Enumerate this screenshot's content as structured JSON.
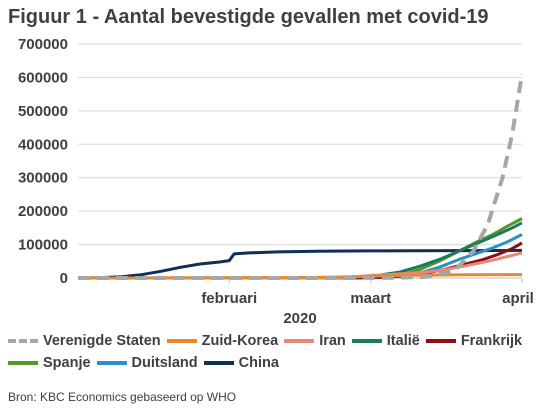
{
  "title": "Figuur 1 - Aantal bevestigde gevallen met covid-19",
  "source": "Bron: KBC Economics gebaseerd op WHO",
  "chart_data": {
    "type": "line",
    "title": "Figuur 1 - Aantal bevestigde gevallen met covid-19",
    "xlabel": "2020",
    "ylabel": "",
    "ylim": [
      0,
      700000
    ],
    "yticks": [
      "0",
      "100000",
      "200000",
      "300000",
      "400000",
      "500000",
      "600000",
      "700000"
    ],
    "xticks": [
      {
        "label": "februari",
        "day": 32
      },
      {
        "label": "maart",
        "day": 61
      },
      {
        "label": "april",
        "day": 92
      }
    ],
    "xlim_day": [
      1,
      92
    ],
    "grid": true,
    "legend_position": "bottom",
    "series": [
      {
        "name": "Verenigde Staten",
        "color": "#a6a6a6",
        "dashed": true,
        "points": [
          [
            1,
            0
          ],
          [
            55,
            0
          ],
          [
            65,
            500
          ],
          [
            72,
            3000
          ],
          [
            78,
            20000
          ],
          [
            82,
            80000
          ],
          [
            85,
            160000
          ],
          [
            88,
            300000
          ],
          [
            90,
            430000
          ],
          [
            92,
            610000
          ]
        ]
      },
      {
        "name": "Zuid-Korea",
        "color": "#e8872b",
        "points": [
          [
            1,
            0
          ],
          [
            45,
            500
          ],
          [
            55,
            3000
          ],
          [
            62,
            6000
          ],
          [
            70,
            8000
          ],
          [
            80,
            9500
          ],
          [
            92,
            10300
          ]
        ]
      },
      {
        "name": "Iran",
        "color": "#e8877a",
        "points": [
          [
            1,
            0
          ],
          [
            50,
            0
          ],
          [
            55,
            1000
          ],
          [
            62,
            8000
          ],
          [
            70,
            15000
          ],
          [
            75,
            22000
          ],
          [
            80,
            35000
          ],
          [
            85,
            50000
          ],
          [
            89,
            64000
          ],
          [
            92,
            75000
          ]
        ]
      },
      {
        "name": "Italië",
        "color": "#1e7a5e",
        "points": [
          [
            1,
            0
          ],
          [
            52,
            0
          ],
          [
            56,
            1500
          ],
          [
            62,
            7000
          ],
          [
            67,
            18000
          ],
          [
            71,
            35000
          ],
          [
            75,
            55000
          ],
          [
            79,
            80000
          ],
          [
            83,
            105000
          ],
          [
            87,
            130000
          ],
          [
            90,
            150000
          ],
          [
            92,
            165000
          ]
        ]
      },
      {
        "name": "Frankrijk",
        "color": "#8b0e16",
        "points": [
          [
            1,
            0
          ],
          [
            58,
            200
          ],
          [
            63,
            2000
          ],
          [
            68,
            6000
          ],
          [
            72,
            14000
          ],
          [
            76,
            25000
          ],
          [
            80,
            40000
          ],
          [
            84,
            55000
          ],
          [
            87,
            70000
          ],
          [
            90,
            88000
          ],
          [
            92,
            105000
          ]
        ]
      },
      {
        "name": "Spanje",
        "color": "#4e9a28",
        "points": [
          [
            1,
            0
          ],
          [
            58,
            200
          ],
          [
            63,
            2500
          ],
          [
            67,
            8000
          ],
          [
            71,
            25000
          ],
          [
            75,
            50000
          ],
          [
            79,
            80000
          ],
          [
            83,
            110000
          ],
          [
            86,
            130000
          ],
          [
            89,
            155000
          ],
          [
            92,
            178000
          ]
        ]
      },
      {
        "name": "Duitsland",
        "color": "#2e8fc4",
        "points": [
          [
            1,
            0
          ],
          [
            58,
            100
          ],
          [
            63,
            1500
          ],
          [
            67,
            5000
          ],
          [
            71,
            15000
          ],
          [
            75,
            32000
          ],
          [
            79,
            55000
          ],
          [
            83,
            75000
          ],
          [
            86,
            90000
          ],
          [
            89,
            108000
          ],
          [
            92,
            130000
          ]
        ]
      },
      {
        "name": "China",
        "color": "#0f2f55",
        "points": [
          [
            1,
            0
          ],
          [
            5,
            500
          ],
          [
            10,
            4000
          ],
          [
            14,
            10000
          ],
          [
            18,
            20000
          ],
          [
            22,
            32000
          ],
          [
            26,
            42000
          ],
          [
            30,
            48000
          ],
          [
            32,
            52000
          ],
          [
            33,
            72000
          ],
          [
            36,
            75000
          ],
          [
            42,
            78000
          ],
          [
            50,
            80000
          ],
          [
            60,
            81000
          ],
          [
            70,
            81500
          ],
          [
            80,
            82000
          ],
          [
            92,
            82700
          ]
        ]
      }
    ]
  }
}
